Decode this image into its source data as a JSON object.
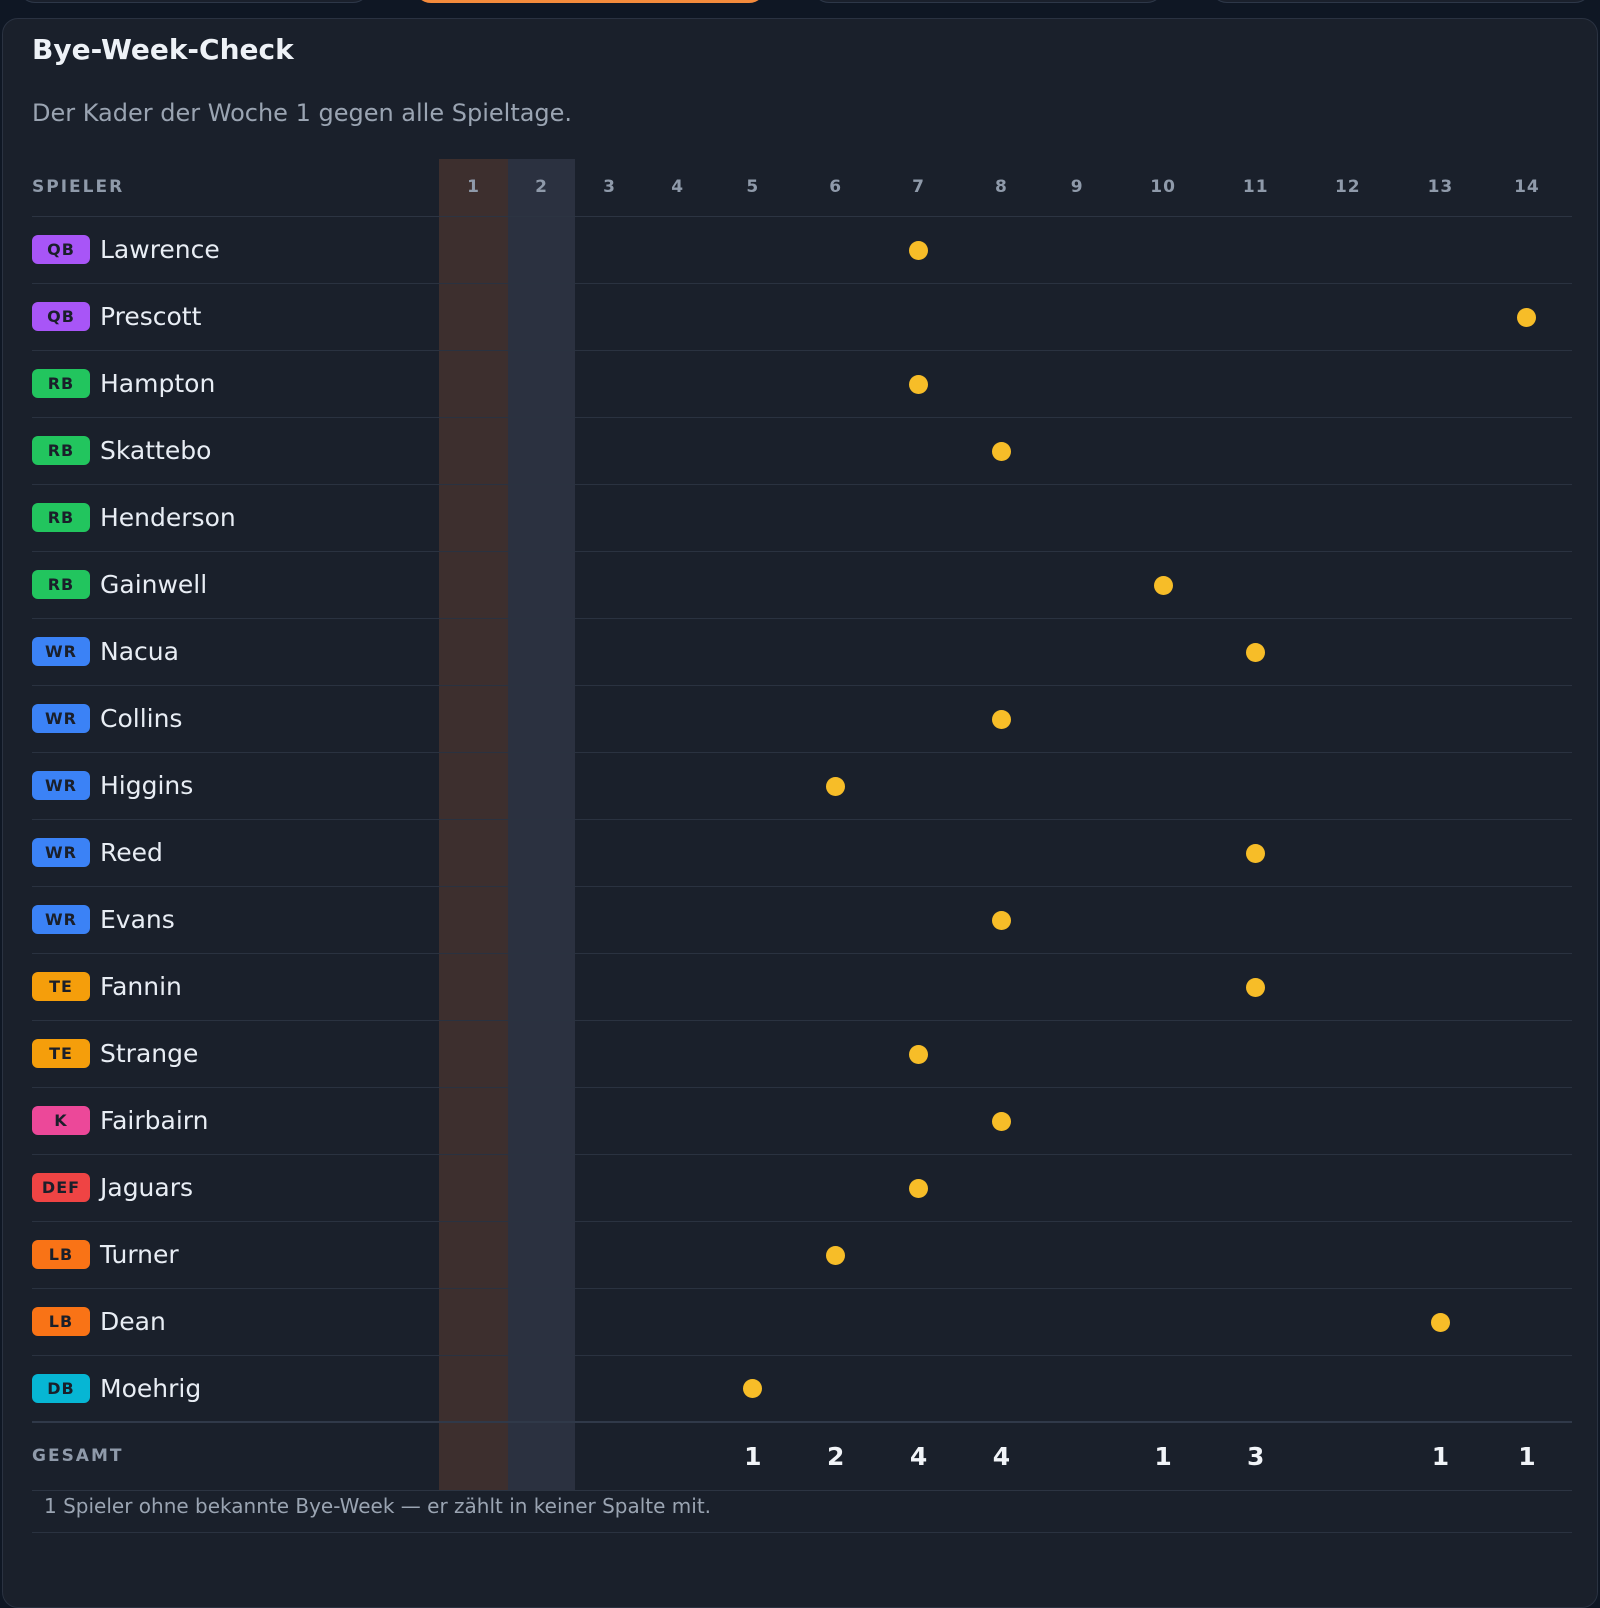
{
  "title": "Bye-Week-Check",
  "subtitle": "Der Kader der Woche 1 gegen alle Spieltage.",
  "table": {
    "player_header": "SPIELER",
    "weeks": [
      "1",
      "2",
      "3",
      "4",
      "5",
      "6",
      "7",
      "8",
      "9",
      "10",
      "11",
      "12",
      "13",
      "14"
    ],
    "highlighted_weeks": {
      "1": "#3d2f2e",
      "2": "#2b3140"
    },
    "players": [
      {
        "pos": "QB",
        "name": "Lawrence",
        "bye": 7
      },
      {
        "pos": "QB",
        "name": "Prescott",
        "bye": 14
      },
      {
        "pos": "RB",
        "name": "Hampton",
        "bye": 7
      },
      {
        "pos": "RB",
        "name": "Skattebo",
        "bye": 8
      },
      {
        "pos": "RB",
        "name": "Henderson",
        "bye": null
      },
      {
        "pos": "RB",
        "name": "Gainwell",
        "bye": 10
      },
      {
        "pos": "WR",
        "name": "Nacua",
        "bye": 11
      },
      {
        "pos": "WR",
        "name": "Collins",
        "bye": 8
      },
      {
        "pos": "WR",
        "name": "Higgins",
        "bye": 6
      },
      {
        "pos": "WR",
        "name": "Reed",
        "bye": 11
      },
      {
        "pos": "WR",
        "name": "Evans",
        "bye": 8
      },
      {
        "pos": "TE",
        "name": "Fannin",
        "bye": 11
      },
      {
        "pos": "TE",
        "name": "Strange",
        "bye": 7
      },
      {
        "pos": "K",
        "name": "Fairbairn",
        "bye": 8
      },
      {
        "pos": "DEF",
        "name": "Jaguars",
        "bye": 7
      },
      {
        "pos": "LB",
        "name": "Turner",
        "bye": 6
      },
      {
        "pos": "LB",
        "name": "Dean",
        "bye": 13
      },
      {
        "pos": "DB",
        "name": "Moehrig",
        "bye": 5
      }
    ],
    "total_label": "GESAMT",
    "totals": [
      "",
      "",
      "",
      "",
      "1",
      "2",
      "4",
      "4",
      "",
      "1",
      "3",
      "",
      "1",
      "1"
    ]
  },
  "position_colors": {
    "QB": "#a855f7",
    "RB": "#22c55e",
    "WR": "#3b82f6",
    "TE": "#f59e0b",
    "K": "#ec4899",
    "DEF": "#ef4444",
    "LB": "#f97316",
    "DB": "#06b6d4"
  },
  "bye_dot_color": "#f7bd28",
  "footnote": "1 Spieler ohne bekannte Bye-Week — er zählt in keiner Spalte mit."
}
